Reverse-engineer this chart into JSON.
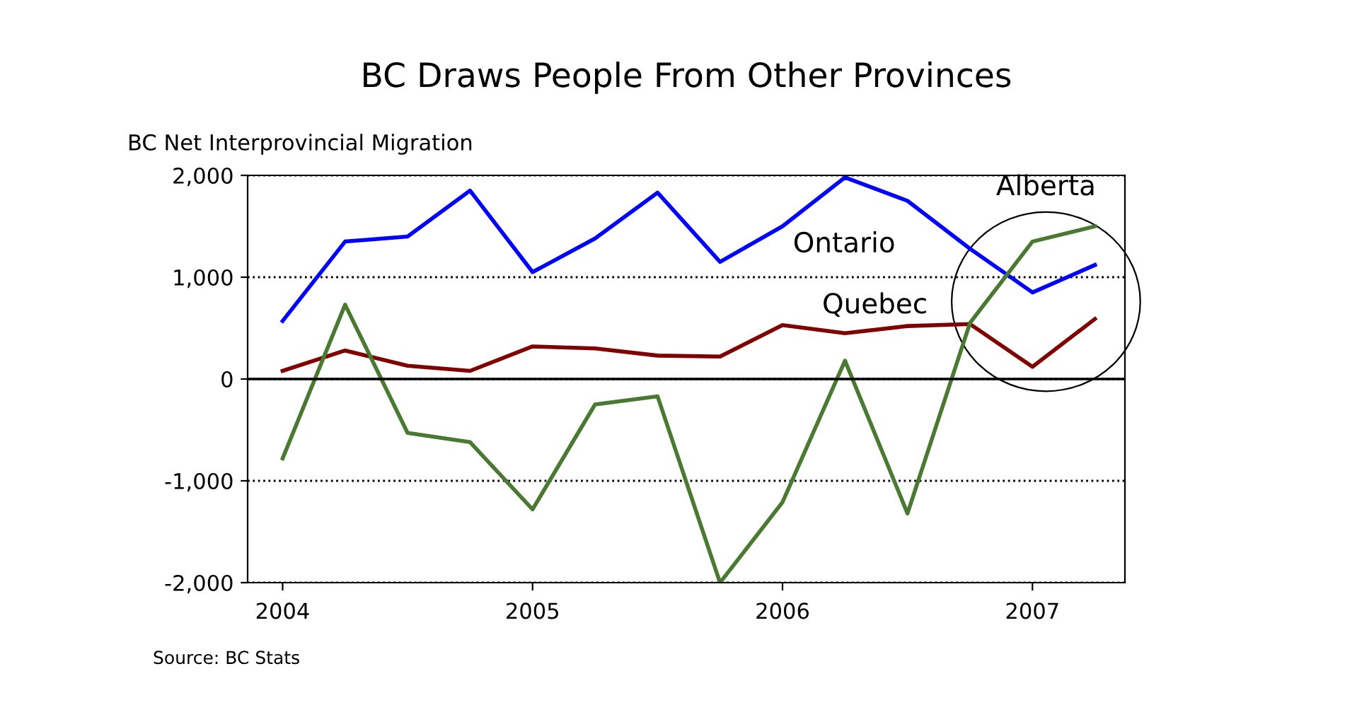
{
  "chart_data": {
    "type": "line",
    "title": "BC Draws People From Other Provinces",
    "ylabel": "BC Net Interprovincial Migration",
    "x": [
      2004,
      2004.25,
      2004.5,
      2004.75,
      2005,
      2005.25,
      2005.5,
      2005.75,
      2006,
      2006.25,
      2006.5,
      2006.75,
      2007,
      2007.25
    ],
    "series": [
      {
        "name": "Ontario",
        "color": "#0000ff",
        "values": [
          570,
          1350,
          1400,
          1850,
          1050,
          1380,
          1830,
          1150,
          1500,
          1980,
          1750,
          1280,
          850,
          1120
        ]
      },
      {
        "name": "Quebec",
        "color": "#800000",
        "values": [
          80,
          280,
          130,
          80,
          320,
          300,
          230,
          220,
          530,
          450,
          520,
          540,
          120,
          590
        ]
      },
      {
        "name": "Alberta",
        "color": "#4a7a32",
        "values": [
          -780,
          730,
          -530,
          -620,
          -1280,
          -250,
          -170,
          -2000,
          -1210,
          180,
          -1320,
          550,
          1350,
          1500
        ]
      }
    ],
    "xlim": [
      2003.86,
      2007.37
    ],
    "xticks": [
      2004,
      2005,
      2006,
      2007
    ],
    "ylim": [
      -2000,
      2000
    ],
    "yticks": [
      {
        "value": -2000,
        "label": "-2,000"
      },
      {
        "value": -1000,
        "label": "-1,000"
      },
      0,
      {
        "value": 1000,
        "label": "1,000"
      },
      {
        "value": 2000,
        "label": "2,000"
      }
    ],
    "grid": "y",
    "line_style": "solid",
    "marker": "none",
    "annotations": [
      "Source: BC Stats"
    ]
  }
}
